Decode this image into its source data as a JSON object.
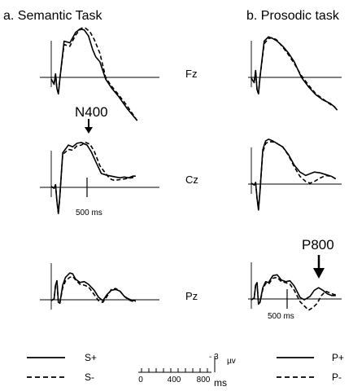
{
  "chart_data": {
    "type": "line",
    "time_unit": "ms",
    "amplitude_unit": "µv",
    "negative_up": true,
    "panels": [
      {
        "title": "a.  Semantic Task",
        "column": "left",
        "series": [
          {
            "name": "S+",
            "style": "solid"
          },
          {
            "name": "S-",
            "style": "dashed"
          }
        ]
      },
      {
        "title": "b. Prosodic task",
        "column": "right",
        "series": [
          {
            "name": "P+",
            "style": "solid"
          },
          {
            "name": "P-",
            "style": "dashed"
          }
        ]
      }
    ],
    "electrodes": [
      "Fz",
      "Cz",
      "Pz"
    ],
    "traces": {
      "semantic": {
        "Fz": {
          "S+": [
            [
              0,
              0.2
            ],
            [
              40,
              0.8
            ],
            [
              60,
              -0.4
            ],
            [
              80,
              1.3
            ],
            [
              100,
              1.9
            ],
            [
              120,
              0.2
            ],
            [
              180,
              -4.2
            ],
            [
              260,
              -4.0
            ],
            [
              340,
              -5.2
            ],
            [
              400,
              -5.6
            ],
            [
              460,
              -5.5
            ],
            [
              520,
              -4.8
            ],
            [
              580,
              -3.2
            ],
            [
              620,
              -2.4
            ],
            [
              680,
              -1.8
            ],
            [
              760,
              0.2
            ],
            [
              840,
              1.2
            ],
            [
              940,
              2.2
            ],
            [
              1060,
              3.6
            ],
            [
              1200,
              5.0
            ]
          ],
          "S-": [
            [
              0,
              0.2
            ],
            [
              40,
              0.8
            ],
            [
              60,
              -0.4
            ],
            [
              80,
              1.3
            ],
            [
              100,
              1.9
            ],
            [
              120,
              0.1
            ],
            [
              180,
              -3.8
            ],
            [
              260,
              -3.6
            ],
            [
              340,
              -4.9
            ],
            [
              420,
              -5.7
            ],
            [
              480,
              -5.7
            ],
            [
              540,
              -5.3
            ],
            [
              600,
              -4.4
            ],
            [
              680,
              -2.8
            ],
            [
              760,
              0.0
            ],
            [
              840,
              1.0
            ],
            [
              940,
              2.0
            ],
            [
              1060,
              3.3
            ],
            [
              1200,
              5.0
            ]
          ]
        },
        "Cz": {
          "S+": [
            [
              0,
              -0.1
            ],
            [
              40,
              0.1
            ],
            [
              60,
              -0.3
            ],
            [
              80,
              1.6
            ],
            [
              100,
              3.0
            ],
            [
              120,
              1.0
            ],
            [
              160,
              -4.0
            ],
            [
              240,
              -4.9
            ],
            [
              300,
              -4.7
            ],
            [
              360,
              -5.1
            ],
            [
              420,
              -5.2
            ],
            [
              500,
              -4.9
            ],
            [
              560,
              -4.1
            ],
            [
              620,
              -3.0
            ],
            [
              700,
              -1.6
            ],
            [
              780,
              -1.4
            ],
            [
              840,
              -1.3
            ],
            [
              900,
              -1.2
            ],
            [
              960,
              -1.1
            ],
            [
              1020,
              -1.2
            ],
            [
              1080,
              -1.1
            ],
            [
              1140,
              -1.3
            ],
            [
              1180,
              -1.3
            ]
          ],
          "S-": [
            [
              0,
              -0.1
            ],
            [
              40,
              0.1
            ],
            [
              60,
              -0.3
            ],
            [
              80,
              1.6
            ],
            [
              100,
              3.1
            ],
            [
              120,
              1.0
            ],
            [
              160,
              -3.8
            ],
            [
              240,
              -4.4
            ],
            [
              300,
              -4.3
            ],
            [
              360,
              -4.8
            ],
            [
              420,
              -4.9
            ],
            [
              480,
              -5.2
            ],
            [
              540,
              -5.0
            ],
            [
              600,
              -4.2
            ],
            [
              680,
              -2.5
            ],
            [
              760,
              -1.6
            ],
            [
              820,
              -1.0
            ],
            [
              880,
              -0.8
            ],
            [
              960,
              -0.9
            ],
            [
              1040,
              -1.0
            ],
            [
              1120,
              -1.1
            ],
            [
              1180,
              -1.2
            ]
          ]
        },
        "Pz": {
          "S+": [
            [
              0,
              0.1
            ],
            [
              40,
              -0.1
            ],
            [
              60,
              -1.7
            ],
            [
              80,
              -2.2
            ],
            [
              100,
              0.3
            ],
            [
              120,
              0.4
            ],
            [
              160,
              -1.7
            ],
            [
              200,
              -2.6
            ],
            [
              260,
              -3.1
            ],
            [
              300,
              -3.0
            ],
            [
              340,
              -2.4
            ],
            [
              400,
              -2.0
            ],
            [
              460,
              -2.1
            ],
            [
              520,
              -1.8
            ],
            [
              600,
              -1.1
            ],
            [
              660,
              -0.3
            ],
            [
              720,
              0.1
            ],
            [
              780,
              -0.6
            ],
            [
              840,
              -1.1
            ],
            [
              900,
              -1.2
            ],
            [
              960,
              -1.0
            ],
            [
              1020,
              -0.4
            ],
            [
              1080,
              -0.1
            ],
            [
              1140,
              0.1
            ],
            [
              1180,
              0.1
            ]
          ],
          "S-": [
            [
              0,
              0.1
            ],
            [
              40,
              -0.1
            ],
            [
              60,
              -1.7
            ],
            [
              80,
              -2.2
            ],
            [
              100,
              0.4
            ],
            [
              120,
              0.4
            ],
            [
              160,
              -1.4
            ],
            [
              200,
              -2.2
            ],
            [
              260,
              -2.6
            ],
            [
              300,
              -2.7
            ],
            [
              340,
              -2.3
            ],
            [
              400,
              -1.8
            ],
            [
              460,
              -1.7
            ],
            [
              520,
              -1.5
            ],
            [
              600,
              -0.6
            ],
            [
              660,
              0.1
            ],
            [
              720,
              0.3
            ],
            [
              780,
              -0.4
            ],
            [
              840,
              -1.2
            ],
            [
              900,
              -1.3
            ],
            [
              960,
              -1.0
            ],
            [
              1020,
              -0.4
            ],
            [
              1080,
              0.0
            ],
            [
              1140,
              0.2
            ],
            [
              1180,
              0.2
            ]
          ]
        }
      },
      "prosodic": {
        "Fz": {
          "P+": [
            [
              0,
              0.1
            ],
            [
              40,
              0.6
            ],
            [
              60,
              -0.8
            ],
            [
              80,
              1.4
            ],
            [
              100,
              1.9
            ],
            [
              120,
              0.0
            ],
            [
              180,
              -4.2
            ],
            [
              240,
              -4.7
            ],
            [
              300,
              -4.5
            ],
            [
              360,
              -4.2
            ],
            [
              440,
              -3.6
            ],
            [
              520,
              -2.8
            ],
            [
              600,
              -1.8
            ],
            [
              700,
              0.0
            ],
            [
              800,
              1.1
            ],
            [
              900,
              2.0
            ],
            [
              1000,
              2.6
            ],
            [
              1100,
              3.0
            ],
            [
              1160,
              3.4
            ],
            [
              1200,
              3.8
            ]
          ],
          "P-": [
            [
              0,
              0.1
            ],
            [
              40,
              0.6
            ],
            [
              60,
              -0.8
            ],
            [
              80,
              1.4
            ],
            [
              100,
              1.9
            ],
            [
              120,
              0.0
            ],
            [
              180,
              -3.9
            ],
            [
              240,
              -4.5
            ],
            [
              300,
              -4.6
            ],
            [
              360,
              -4.3
            ],
            [
              440,
              -3.5
            ],
            [
              520,
              -2.6
            ],
            [
              600,
              -1.6
            ],
            [
              700,
              -0.2
            ],
            [
              800,
              0.9
            ],
            [
              900,
              1.9
            ],
            [
              1000,
              2.5
            ],
            [
              1100,
              3.1
            ],
            [
              1160,
              3.4
            ],
            [
              1200,
              3.8
            ]
          ]
        },
        "Cz": {
          "P+": [
            [
              0,
              -0.1
            ],
            [
              40,
              0.1
            ],
            [
              60,
              -0.2
            ],
            [
              80,
              1.6
            ],
            [
              100,
              3.0
            ],
            [
              120,
              0.9
            ],
            [
              160,
              -4.0
            ],
            [
              200,
              -5.0
            ],
            [
              240,
              -5.2
            ],
            [
              300,
              -5.0
            ],
            [
              360,
              -4.7
            ],
            [
              440,
              -4.3
            ],
            [
              520,
              -3.4
            ],
            [
              600,
              -2.2
            ],
            [
              680,
              -1.4
            ],
            [
              760,
              -1.0
            ],
            [
              820,
              -1.2
            ],
            [
              880,
              -1.4
            ],
            [
              960,
              -1.3
            ],
            [
              1040,
              -1.1
            ],
            [
              1120,
              -0.9
            ],
            [
              1180,
              -0.6
            ]
          ],
          "P-": [
            [
              0,
              -0.1
            ],
            [
              40,
              0.1
            ],
            [
              60,
              -0.2
            ],
            [
              80,
              1.6
            ],
            [
              100,
              2.9
            ],
            [
              120,
              0.8
            ],
            [
              160,
              -3.7
            ],
            [
              200,
              -4.7
            ],
            [
              240,
              -4.9
            ],
            [
              300,
              -4.9
            ],
            [
              360,
              -4.7
            ],
            [
              440,
              -4.3
            ],
            [
              520,
              -3.3
            ],
            [
              600,
              -2.0
            ],
            [
              680,
              -0.9
            ],
            [
              760,
              -0.3
            ],
            [
              820,
              -0.1
            ],
            [
              880,
              -0.3
            ],
            [
              960,
              -0.7
            ],
            [
              1040,
              -1.0
            ],
            [
              1120,
              -0.9
            ],
            [
              1180,
              -0.6
            ]
          ]
        },
        "Pz": {
          "P+": [
            [
              0,
              0.1
            ],
            [
              40,
              -0.1
            ],
            [
              60,
              -1.6
            ],
            [
              80,
              -1.9
            ],
            [
              100,
              0.6
            ],
            [
              120,
              0.4
            ],
            [
              160,
              -1.3
            ],
            [
              200,
              -2.0
            ],
            [
              240,
              -1.9
            ],
            [
              300,
              -2.7
            ],
            [
              360,
              -2.8
            ],
            [
              420,
              -2.2
            ],
            [
              480,
              -2.0
            ],
            [
              540,
              -2.1
            ],
            [
              600,
              -1.5
            ],
            [
              680,
              -0.2
            ],
            [
              740,
              0.1
            ],
            [
              820,
              -0.3
            ],
            [
              880,
              -1.0
            ],
            [
              940,
              -1.3
            ],
            [
              1000,
              -1.0
            ],
            [
              1060,
              -0.6
            ],
            [
              1120,
              -0.4
            ],
            [
              1180,
              -0.4
            ]
          ],
          "P-": [
            [
              0,
              0.1
            ],
            [
              40,
              -0.1
            ],
            [
              60,
              -1.6
            ],
            [
              80,
              -1.9
            ],
            [
              100,
              0.5
            ],
            [
              120,
              0.4
            ],
            [
              160,
              -1.1
            ],
            [
              200,
              -1.8
            ],
            [
              240,
              -1.7
            ],
            [
              300,
              -2.4
            ],
            [
              360,
              -2.5
            ],
            [
              420,
              -2.0
            ],
            [
              480,
              -1.9
            ],
            [
              540,
              -1.7
            ],
            [
              600,
              -1.0
            ],
            [
              680,
              0.3
            ],
            [
              740,
              0.8
            ],
            [
              800,
              1.3
            ],
            [
              860,
              1.0
            ],
            [
              920,
              0.5
            ],
            [
              980,
              -0.4
            ],
            [
              1040,
              -0.9
            ],
            [
              1100,
              -0.7
            ],
            [
              1160,
              -0.5
            ],
            [
              1180,
              -0.5
            ]
          ]
        }
      }
    },
    "annotations": [
      {
        "text": "N400",
        "panel": "semantic",
        "electrode": "Cz",
        "time": 400
      },
      {
        "text": "P800",
        "panel": "prosodic",
        "electrode": "Pz",
        "time": 800
      }
    ],
    "time_markers": [
      {
        "label": "500 ms",
        "panel": "semantic",
        "electrode": "Cz",
        "time": 500
      },
      {
        "label": "500 ms",
        "panel": "prosodic",
        "electrode": "Pz",
        "time": 500
      }
    ],
    "scale_bar": {
      "tick_labels": [
        "0",
        "400",
        "800"
      ],
      "tick_values": [
        0,
        400,
        800
      ],
      "unit_label": "ms",
      "amplitude_label": "- 3",
      "amplitude_unit": "µv",
      "amplitude_value": -3
    }
  }
}
